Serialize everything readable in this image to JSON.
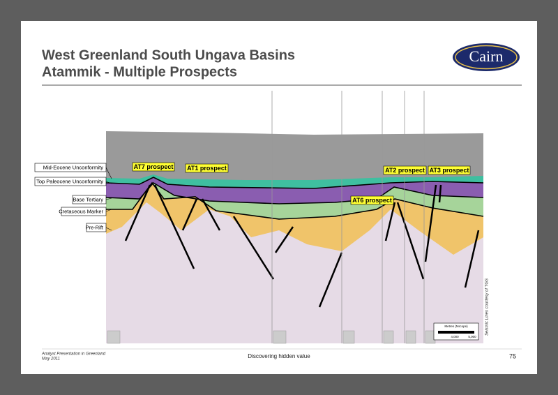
{
  "header": {
    "title_line1": "West Greenland South Ungava Basins",
    "title_line2": "Atammik - Multiple Prospects",
    "logo": "Cairn"
  },
  "section": {
    "horizons": [
      "Mid-Eocene Unconformity",
      "Top Paleocene Unconformity",
      "Base Tertiary",
      "Cretaceous Marker",
      "Pre-Rift"
    ],
    "prospects": [
      "AT7 prospect",
      "AT1 prospect",
      "AT2 prospect",
      "AT3 prospect",
      "AT6 prospect"
    ],
    "credit": "Seismic Lines courtesy of TGS",
    "scale_title": "Metres (Nscope)",
    "scale_labels": [
      "4,000",
      "5,000"
    ]
  },
  "footer": {
    "event": "Analyst Presentation in Greenland",
    "date": "May 2011",
    "tagline": "Discovering hidden value",
    "page": "75"
  }
}
